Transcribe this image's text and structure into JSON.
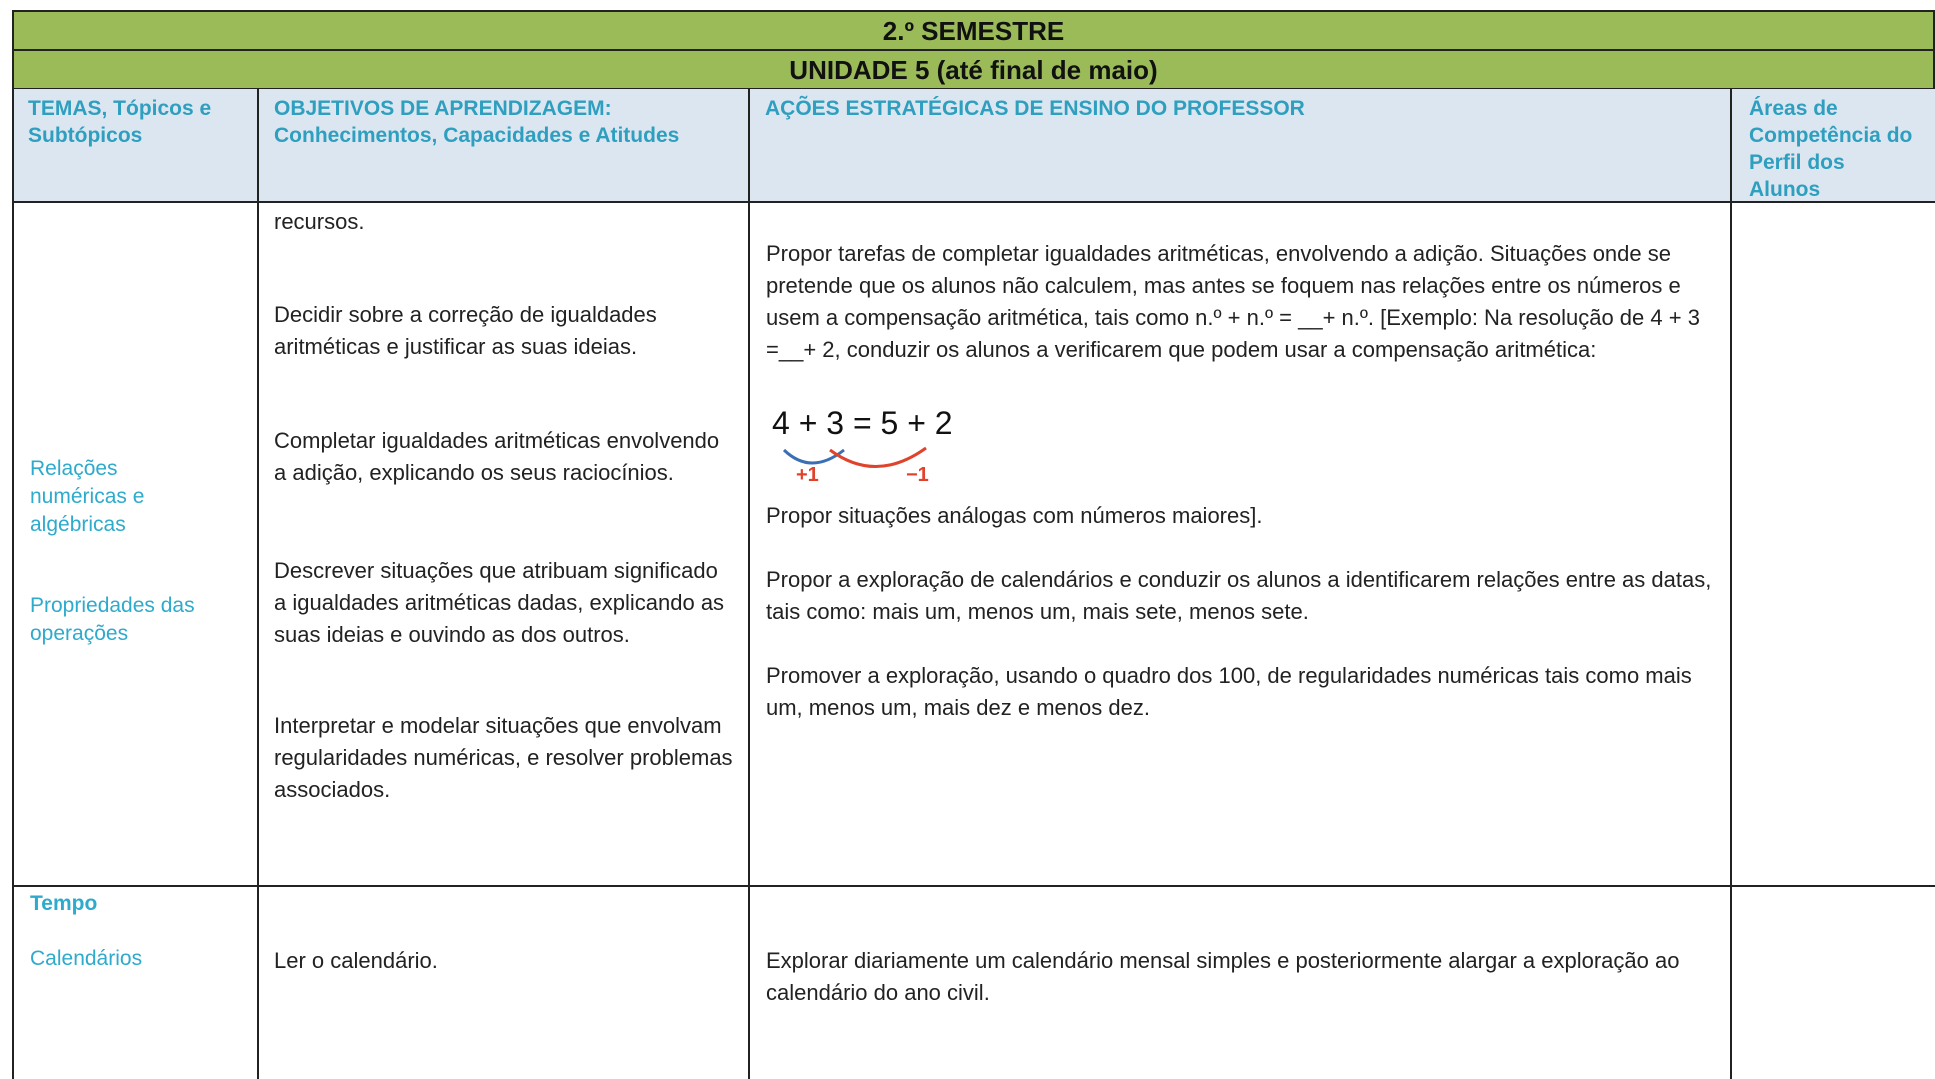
{
  "header": {
    "semester": "2.º SEMESTRE",
    "unit": "UNIDADE 5 (até final de maio)"
  },
  "columns": [
    "TEMAS, Tópicos e Subtópicos",
    "OBJETIVOS DE APRENDIZAGEM: Conhecimentos, Capacidades e Atitudes",
    "AÇÕES ESTRATÉGICAS DE ENSINO DO PROFESSOR",
    "Áreas de Competência do Perfil dos Alunos"
  ],
  "rows": [
    {
      "themes": [
        "Relações numéricas e algébricas",
        "Propriedades das operações"
      ],
      "objectives": [
        "recursos.",
        "Decidir sobre a correção de igualdades aritméticas e justificar as suas ideias.",
        "Completar igualdades aritméticas envolvendo a adição, explicando os seus raciocínios.",
        "Descrever situações que atribuam significado a igualdades aritméticas dadas, explicando as suas ideias e ouvindo as dos outros.",
        "Interpretar e modelar situações que envolvam regularidades numéricas, e resolver problemas associados."
      ],
      "actions": [
        "Propor tarefas de completar igualdades aritméticas, envolvendo a adição. Situações onde se pretende que os alunos não calculem, mas antes se foquem nas relações entre os números e usem a compensação aritmética, tais como n.º + n.º = __+ n.º. [Exemplo: Na resolução de 4 + 3 =__+ 2, conduzir os alunos a verificarem que podem usar a compensação aritmética:",
        "Propor situações análogas com números maiores].",
        "Propor a exploração de calendários e conduzir os alunos a identificarem relações entre as datas, tais como: mais um, menos um, mais sete, menos sete.",
        "Promover a exploração, usando o quadro dos 100, de regularidades numéricas tais como mais um, menos um, mais dez e menos dez."
      ],
      "example": {
        "expression": "4 + 3 = 5 + 2",
        "left": "+1",
        "right": "−1"
      }
    },
    {
      "themes": [
        "Tempo",
        "Calendários"
      ],
      "objectives": [
        "Ler o calendário."
      ],
      "actions": [
        "Explorar diariamente um calendário mensal simples e posteriormente alargar a exploração ao calendário do ano civil."
      ]
    }
  ]
}
